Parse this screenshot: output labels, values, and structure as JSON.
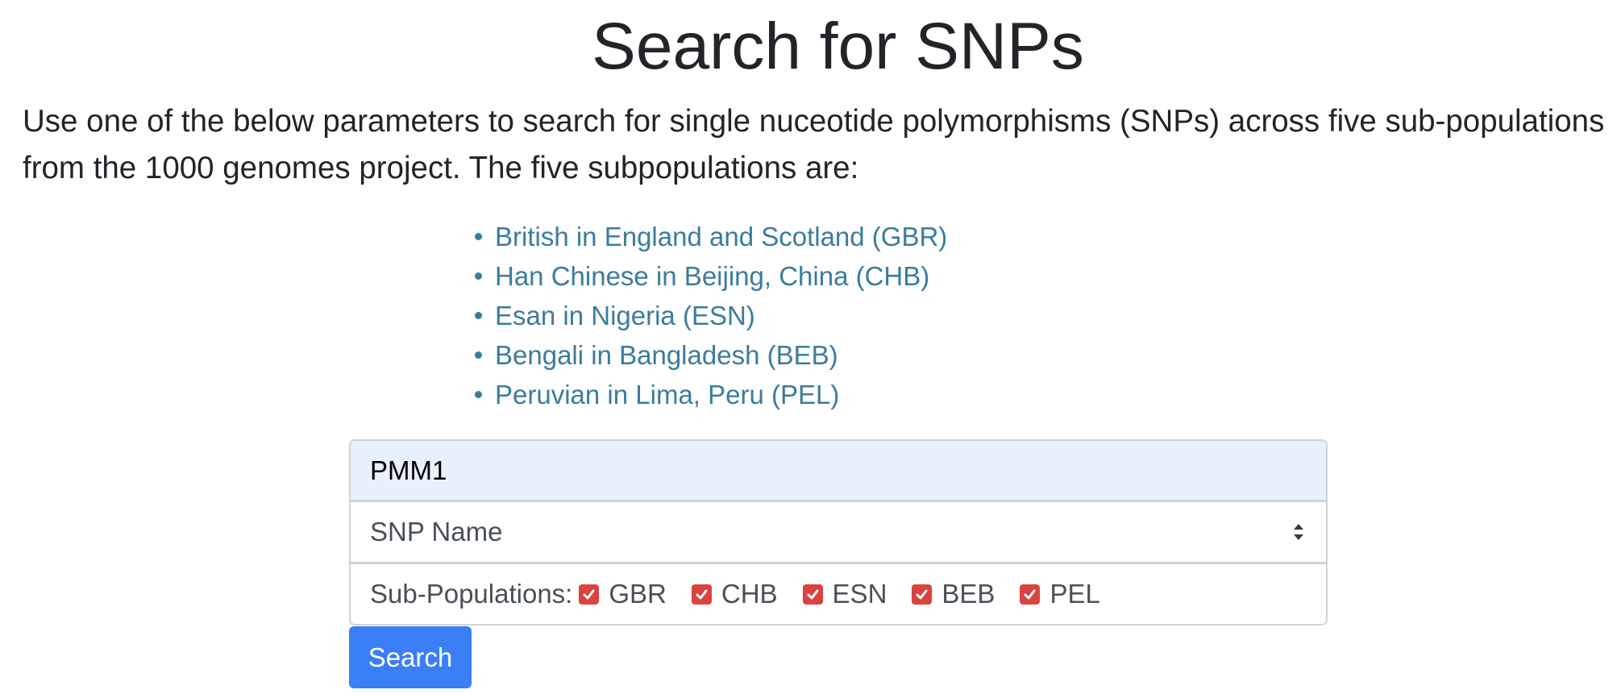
{
  "page": {
    "title": "Search for SNPs",
    "intro": "Use one of the below parameters to search for single nuceotide polymorphisms (SNPs) across five sub-populations from the 1000 genomes project. The five subpopulations are:"
  },
  "populations": [
    "British in England and Scotland (GBR)",
    "Han Chinese in Beijing, China (CHB)",
    "Esan in Nigeria (ESN)",
    "Bengali in Bangladesh (BEB)",
    "Peruvian in Lima, Peru (PEL)"
  ],
  "form": {
    "query_value": "PMM1",
    "search_type_selected": "SNP Name",
    "subpop_label": "Sub-Populations:",
    "checkboxes": [
      {
        "label": "GBR",
        "checked": true
      },
      {
        "label": "CHB",
        "checked": true
      },
      {
        "label": "ESN",
        "checked": true
      },
      {
        "label": "BEB",
        "checked": true
      },
      {
        "label": "PEL",
        "checked": true
      }
    ],
    "search_button_label": "Search"
  },
  "colors": {
    "link": "#3b7c9c",
    "checkbox": "#d9443e",
    "button": "#3a7ff6",
    "autofill_bg": "#e8f0fe"
  },
  "icons": {
    "select": "select-arrows-icon",
    "checkbox": "checkmark-icon"
  }
}
